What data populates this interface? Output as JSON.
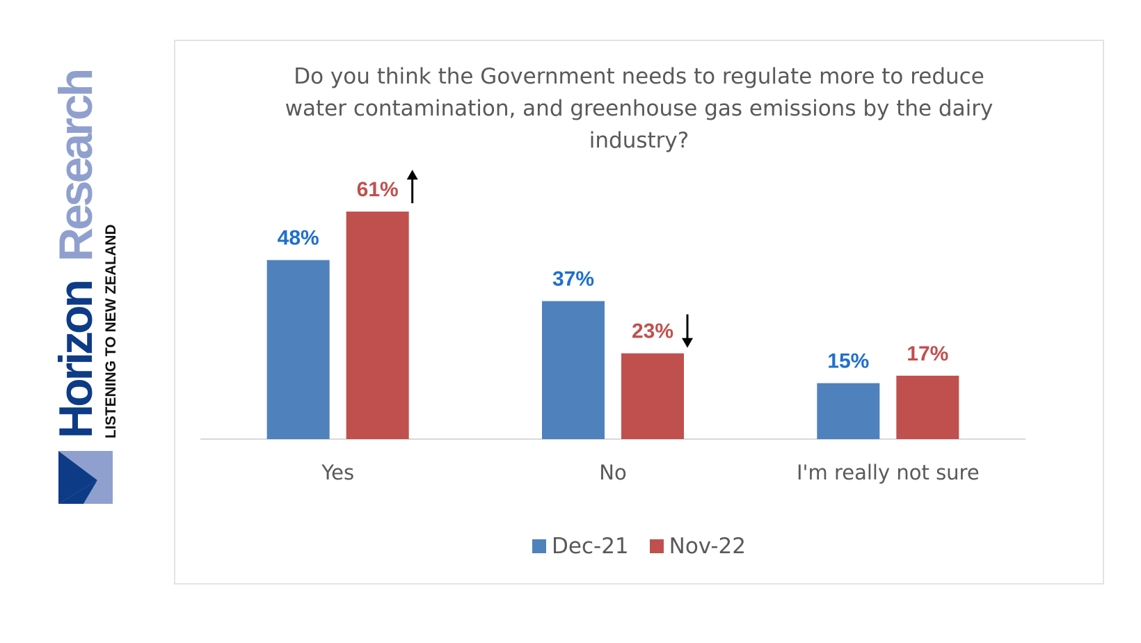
{
  "logo": {
    "brand_part1": "Horizon",
    "brand_part2": "Research",
    "tagline": "LISTENING TO NEW ZEALAND",
    "dark_color": "#0d3b86",
    "light_color": "#8fa0cf"
  },
  "chart_data": {
    "type": "bar",
    "title": "Do you think the Government needs to regulate more to reduce water contamination, and greenhouse gas emissions by the dairy industry?",
    "title_lines": [
      "Do you think the Government needs to regulate more to reduce",
      "water contamination, and greenhouse gas emissions by the dairy",
      "industry?"
    ],
    "categories": [
      "Yes",
      "No",
      "I'm really not sure"
    ],
    "series": [
      {
        "name": "Dec-21",
        "values": [
          48,
          37,
          15
        ],
        "color": "#4f81bd",
        "label_color": "#1f6fcf"
      },
      {
        "name": "Nov-22",
        "values": [
          61,
          23,
          17
        ],
        "color": "#c0504d",
        "label_color": "#c0504d"
      }
    ],
    "value_suffix": "%",
    "ylim": [
      0,
      70
    ],
    "xlabel": "",
    "ylabel": "",
    "grid": false,
    "legend_position": "bottom",
    "annotations": [
      {
        "category": "Yes",
        "series": "Nov-22",
        "marker": "up-arrow"
      },
      {
        "category": "No",
        "series": "Nov-22",
        "marker": "down-arrow"
      }
    ]
  }
}
